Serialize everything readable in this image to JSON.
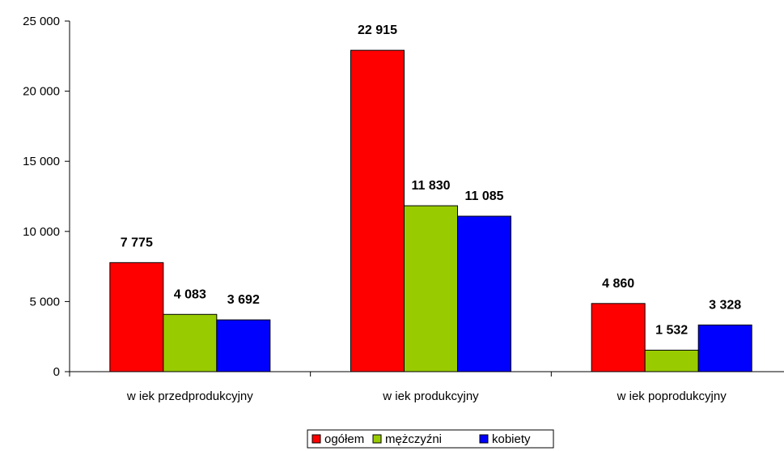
{
  "chart_data": {
    "type": "bar",
    "categories": [
      "w iek przedprodukcyjny",
      "w iek produkcyjny",
      "w iek poprodukcyjny"
    ],
    "series": [
      {
        "name": "ogółem",
        "color": "#ff0000",
        "values": [
          7775,
          22915,
          4860
        ],
        "labels": [
          "7 775",
          "22 915",
          "4 860"
        ]
      },
      {
        "name": "mężczyźni",
        "color": "#99cc00",
        "values": [
          4083,
          11830,
          1532
        ],
        "labels": [
          "4 083",
          "11 830",
          "1 532"
        ]
      },
      {
        "name": "kobiety",
        "color": "#0000ff",
        "values": [
          3692,
          11085,
          3328
        ],
        "labels": [
          "3 692",
          "11 085",
          "3 328"
        ]
      }
    ],
    "ylim": [
      0,
      25000
    ],
    "yticks": [
      0,
      5000,
      10000,
      15000,
      20000,
      25000
    ],
    "ytick_labels": [
      "0",
      "5 000",
      "10 000",
      "15 000",
      "20 000",
      "25 000"
    ],
    "grid": false,
    "legend_position": "bottom"
  }
}
